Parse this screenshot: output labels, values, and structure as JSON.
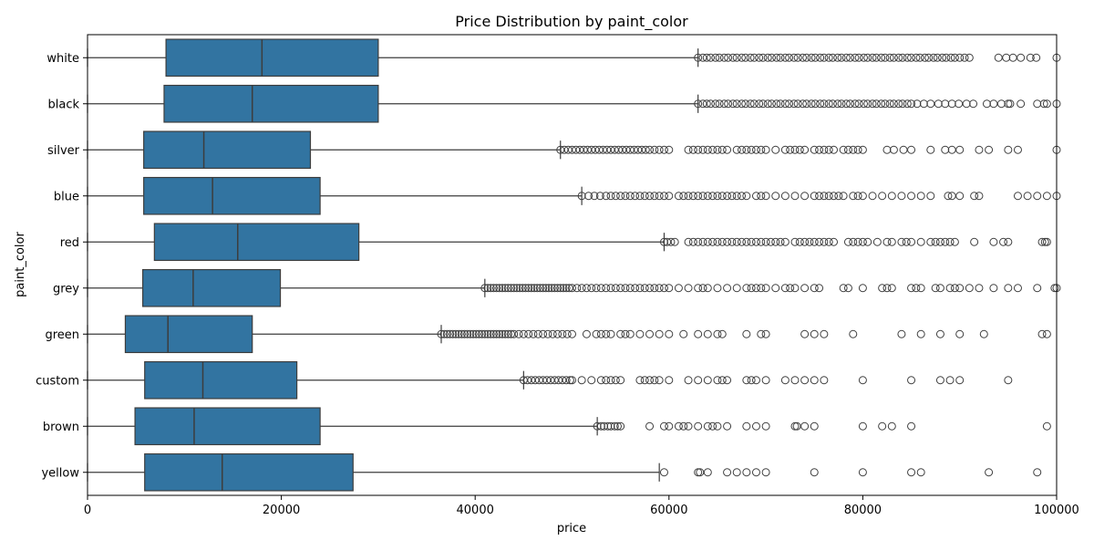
{
  "chart_data": {
    "type": "box",
    "orientation": "horizontal",
    "title": "Price Distribution by paint_color",
    "xlabel": "price",
    "ylabel": "paint_color",
    "xlim": [
      0,
      100000
    ],
    "xticks": [
      0,
      20000,
      40000,
      60000,
      80000,
      100000
    ],
    "xtick_labels": [
      "0",
      "20000",
      "40000",
      "60000",
      "80000",
      "100000"
    ],
    "grid": false,
    "box_color": "#3274a1",
    "line_color": "#3d3d3d",
    "categories": [
      "white",
      "black",
      "silver",
      "blue",
      "red",
      "grey",
      "green",
      "custom",
      "brown",
      "yellow"
    ],
    "boxes": [
      {
        "category": "white",
        "whisker_low": 0,
        "q1": 8100,
        "median": 18000,
        "q3": 30000,
        "whisker_high": 63000
      },
      {
        "category": "black",
        "whisker_low": 0,
        "q1": 7900,
        "median": 17000,
        "q3": 30000,
        "whisker_high": 63000
      },
      {
        "category": "silver",
        "whisker_low": 0,
        "q1": 5800,
        "median": 12000,
        "q3": 23000,
        "whisker_high": 48800
      },
      {
        "category": "blue",
        "whisker_low": 0,
        "q1": 5800,
        "median": 12900,
        "q3": 24000,
        "whisker_high": 51000
      },
      {
        "category": "red",
        "whisker_low": 0,
        "q1": 6900,
        "median": 15500,
        "q3": 28000,
        "whisker_high": 59500
      },
      {
        "category": "grey",
        "whisker_low": 0,
        "q1": 5700,
        "median": 10900,
        "q3": 19900,
        "whisker_high": 41000
      },
      {
        "category": "green",
        "whisker_low": 0,
        "q1": 3900,
        "median": 8300,
        "q3": 17000,
        "whisker_high": 36500
      },
      {
        "category": "custom",
        "whisker_low": 0,
        "q1": 5900,
        "median": 11900,
        "q3": 21600,
        "whisker_high": 45000
      },
      {
        "category": "brown",
        "whisker_low": 0,
        "q1": 4900,
        "median": 11000,
        "q3": 24000,
        "whisker_high": 52600
      },
      {
        "category": "yellow",
        "whisker_low": 0,
        "q1": 5900,
        "median": 13900,
        "q3": 27400,
        "whisker_high": 59000
      }
    ],
    "outliers": {
      "white": [
        63000,
        63500,
        63900,
        64300,
        64800,
        65200,
        65700,
        66100,
        66600,
        67000,
        67500,
        67900,
        68400,
        68800,
        69300,
        69700,
        70200,
        70600,
        71100,
        71500,
        72000,
        72400,
        72900,
        73300,
        73800,
        74200,
        74700,
        75100,
        75600,
        76000,
        76500,
        76900,
        77400,
        77800,
        78300,
        78700,
        79200,
        79600,
        80100,
        80500,
        81000,
        81400,
        81900,
        82300,
        82800,
        83200,
        83700,
        84100,
        84600,
        85000,
        85500,
        85900,
        86400,
        86800,
        87300,
        87700,
        88200,
        88600,
        89100,
        89500,
        90000,
        90500,
        91000,
        94000,
        94800,
        95500,
        96300,
        97300,
        97900,
        100000
      ],
      "black": [
        63000,
        63500,
        63900,
        64300,
        64800,
        65200,
        65700,
        66100,
        66600,
        67000,
        67500,
        67900,
        68400,
        68800,
        69300,
        69700,
        70200,
        70600,
        71100,
        71500,
        72000,
        72400,
        72900,
        73300,
        73800,
        74200,
        74700,
        75100,
        75600,
        76000,
        76500,
        76900,
        77400,
        77800,
        78300,
        78700,
        79200,
        79600,
        80100,
        80500,
        81000,
        81400,
        81900,
        82300,
        82800,
        83200,
        83700,
        84100,
        84600,
        85000,
        85600,
        86300,
        87000,
        87800,
        88500,
        89200,
        89900,
        90700,
        91400,
        92800,
        93500,
        94300,
        95000,
        95200,
        96300,
        98000,
        98700,
        99000,
        100000
      ],
      "silver": [
        48800,
        49200,
        49600,
        50000,
        50400,
        50800,
        51200,
        51600,
        52000,
        52400,
        52800,
        53200,
        53600,
        54000,
        54400,
        54800,
        55200,
        55600,
        56000,
        56400,
        56800,
        57200,
        57600,
        58000,
        58500,
        59000,
        59500,
        60000,
        62000,
        62500,
        63000,
        63500,
        64000,
        64500,
        65000,
        65500,
        66000,
        67000,
        67500,
        68000,
        68500,
        69000,
        69500,
        70000,
        71000,
        72000,
        72500,
        73000,
        73500,
        74000,
        75000,
        75500,
        76000,
        76500,
        77000,
        78000,
        78500,
        79000,
        79500,
        80000,
        82500,
        83200,
        84200,
        85000,
        87000,
        88500,
        89200,
        90000,
        92000,
        93000,
        95000,
        96000,
        100000
      ],
      "blue": [
        51000,
        51700,
        52300,
        52900,
        53500,
        54000,
        54500,
        55000,
        55500,
        56000,
        56500,
        57000,
        57500,
        58000,
        58500,
        59000,
        59500,
        60000,
        61000,
        61500,
        62000,
        62500,
        63000,
        63500,
        64000,
        64500,
        65000,
        65500,
        66000,
        66500,
        67000,
        67500,
        68000,
        69000,
        69500,
        70000,
        71000,
        72000,
        73000,
        74000,
        75000,
        75500,
        76000,
        76500,
        77000,
        77500,
        78000,
        79000,
        79500,
        80000,
        81000,
        82000,
        83000,
        84000,
        85000,
        86000,
        87000,
        88800,
        89200,
        90000,
        91500,
        92000,
        96000,
        97000,
        98000,
        99000,
        100000
      ],
      "red": [
        59500,
        59800,
        60200,
        60600,
        62000,
        62500,
        63000,
        63500,
        64000,
        64500,
        65000,
        65500,
        66000,
        66500,
        67000,
        67500,
        68000,
        68500,
        69000,
        69500,
        70000,
        70500,
        71000,
        71500,
        72000,
        73000,
        73500,
        74000,
        74500,
        75000,
        75500,
        76000,
        76500,
        77000,
        78500,
        79000,
        79500,
        80000,
        80500,
        81500,
        82500,
        83000,
        84000,
        84500,
        85000,
        86000,
        87000,
        87500,
        88000,
        88500,
        89000,
        89500,
        91500,
        93500,
        94500,
        95000,
        98500,
        98800,
        99000
      ],
      "grey": [
        41000,
        41300,
        41600,
        41900,
        42200,
        42500,
        42800,
        43100,
        43400,
        43700,
        44000,
        44300,
        44600,
        44900,
        45200,
        45500,
        45800,
        46100,
        46400,
        46700,
        47000,
        47300,
        47600,
        47900,
        48200,
        48500,
        48800,
        49100,
        49400,
        49700,
        50000,
        50500,
        51000,
        51500,
        52000,
        52500,
        53000,
        53500,
        54000,
        54500,
        55000,
        55500,
        56000,
        56500,
        57000,
        57500,
        58000,
        58500,
        59000,
        59500,
        60000,
        61000,
        62000,
        63000,
        63500,
        64000,
        65000,
        66000,
        67000,
        68000,
        68500,
        69000,
        69500,
        70000,
        71000,
        72000,
        72500,
        73000,
        74000,
        75000,
        75500,
        78000,
        78500,
        80000,
        82000,
        82500,
        83000,
        85000,
        85500,
        86000,
        87500,
        88000,
        89000,
        89500,
        90000,
        91000,
        92000,
        93500,
        95000,
        96000,
        98000,
        99800,
        100000
      ],
      "green": [
        36500,
        36800,
        37100,
        37400,
        37700,
        38000,
        38300,
        38600,
        38900,
        39200,
        39500,
        39800,
        40100,
        40400,
        40700,
        41000,
        41300,
        41600,
        41900,
        42200,
        42500,
        42800,
        43100,
        43400,
        43700,
        44000,
        44500,
        45000,
        45500,
        46000,
        46500,
        47000,
        47500,
        48000,
        48500,
        49000,
        49500,
        50000,
        51500,
        52500,
        53000,
        53500,
        54000,
        55000,
        55500,
        56000,
        57000,
        58000,
        59000,
        60000,
        61500,
        63000,
        64000,
        65000,
        65500,
        68000,
        69500,
        70000,
        74000,
        75000,
        76000,
        79000,
        84000,
        86000,
        88000,
        90000,
        92500,
        98500,
        99000
      ],
      "custom": [
        45000,
        45400,
        45800,
        46200,
        46600,
        47000,
        47400,
        47800,
        48200,
        48600,
        49000,
        49400,
        49800,
        50000,
        51000,
        52000,
        53000,
        53500,
        54000,
        54500,
        55000,
        57000,
        57500,
        58000,
        58500,
        59000,
        60000,
        62000,
        63000,
        64000,
        65000,
        65500,
        66000,
        68000,
        68500,
        69000,
        70000,
        72000,
        73000,
        74000,
        75000,
        76000,
        80000,
        85000,
        88000,
        89000,
        90000,
        95000
      ],
      "brown": [
        52600,
        53000,
        53300,
        53700,
        54000,
        54400,
        54700,
        55000,
        58000,
        59500,
        60000,
        61000,
        61500,
        62000,
        63000,
        64000,
        64500,
        65000,
        66000,
        68000,
        69000,
        70000,
        73000,
        73200,
        74000,
        75000,
        80000,
        82000,
        83000,
        85000,
        99000
      ],
      "yellow": [
        59500,
        63000,
        63200,
        64000,
        66000,
        67000,
        68000,
        69000,
        70000,
        75000,
        80000,
        85000,
        86000,
        93000,
        98000
      ]
    }
  }
}
